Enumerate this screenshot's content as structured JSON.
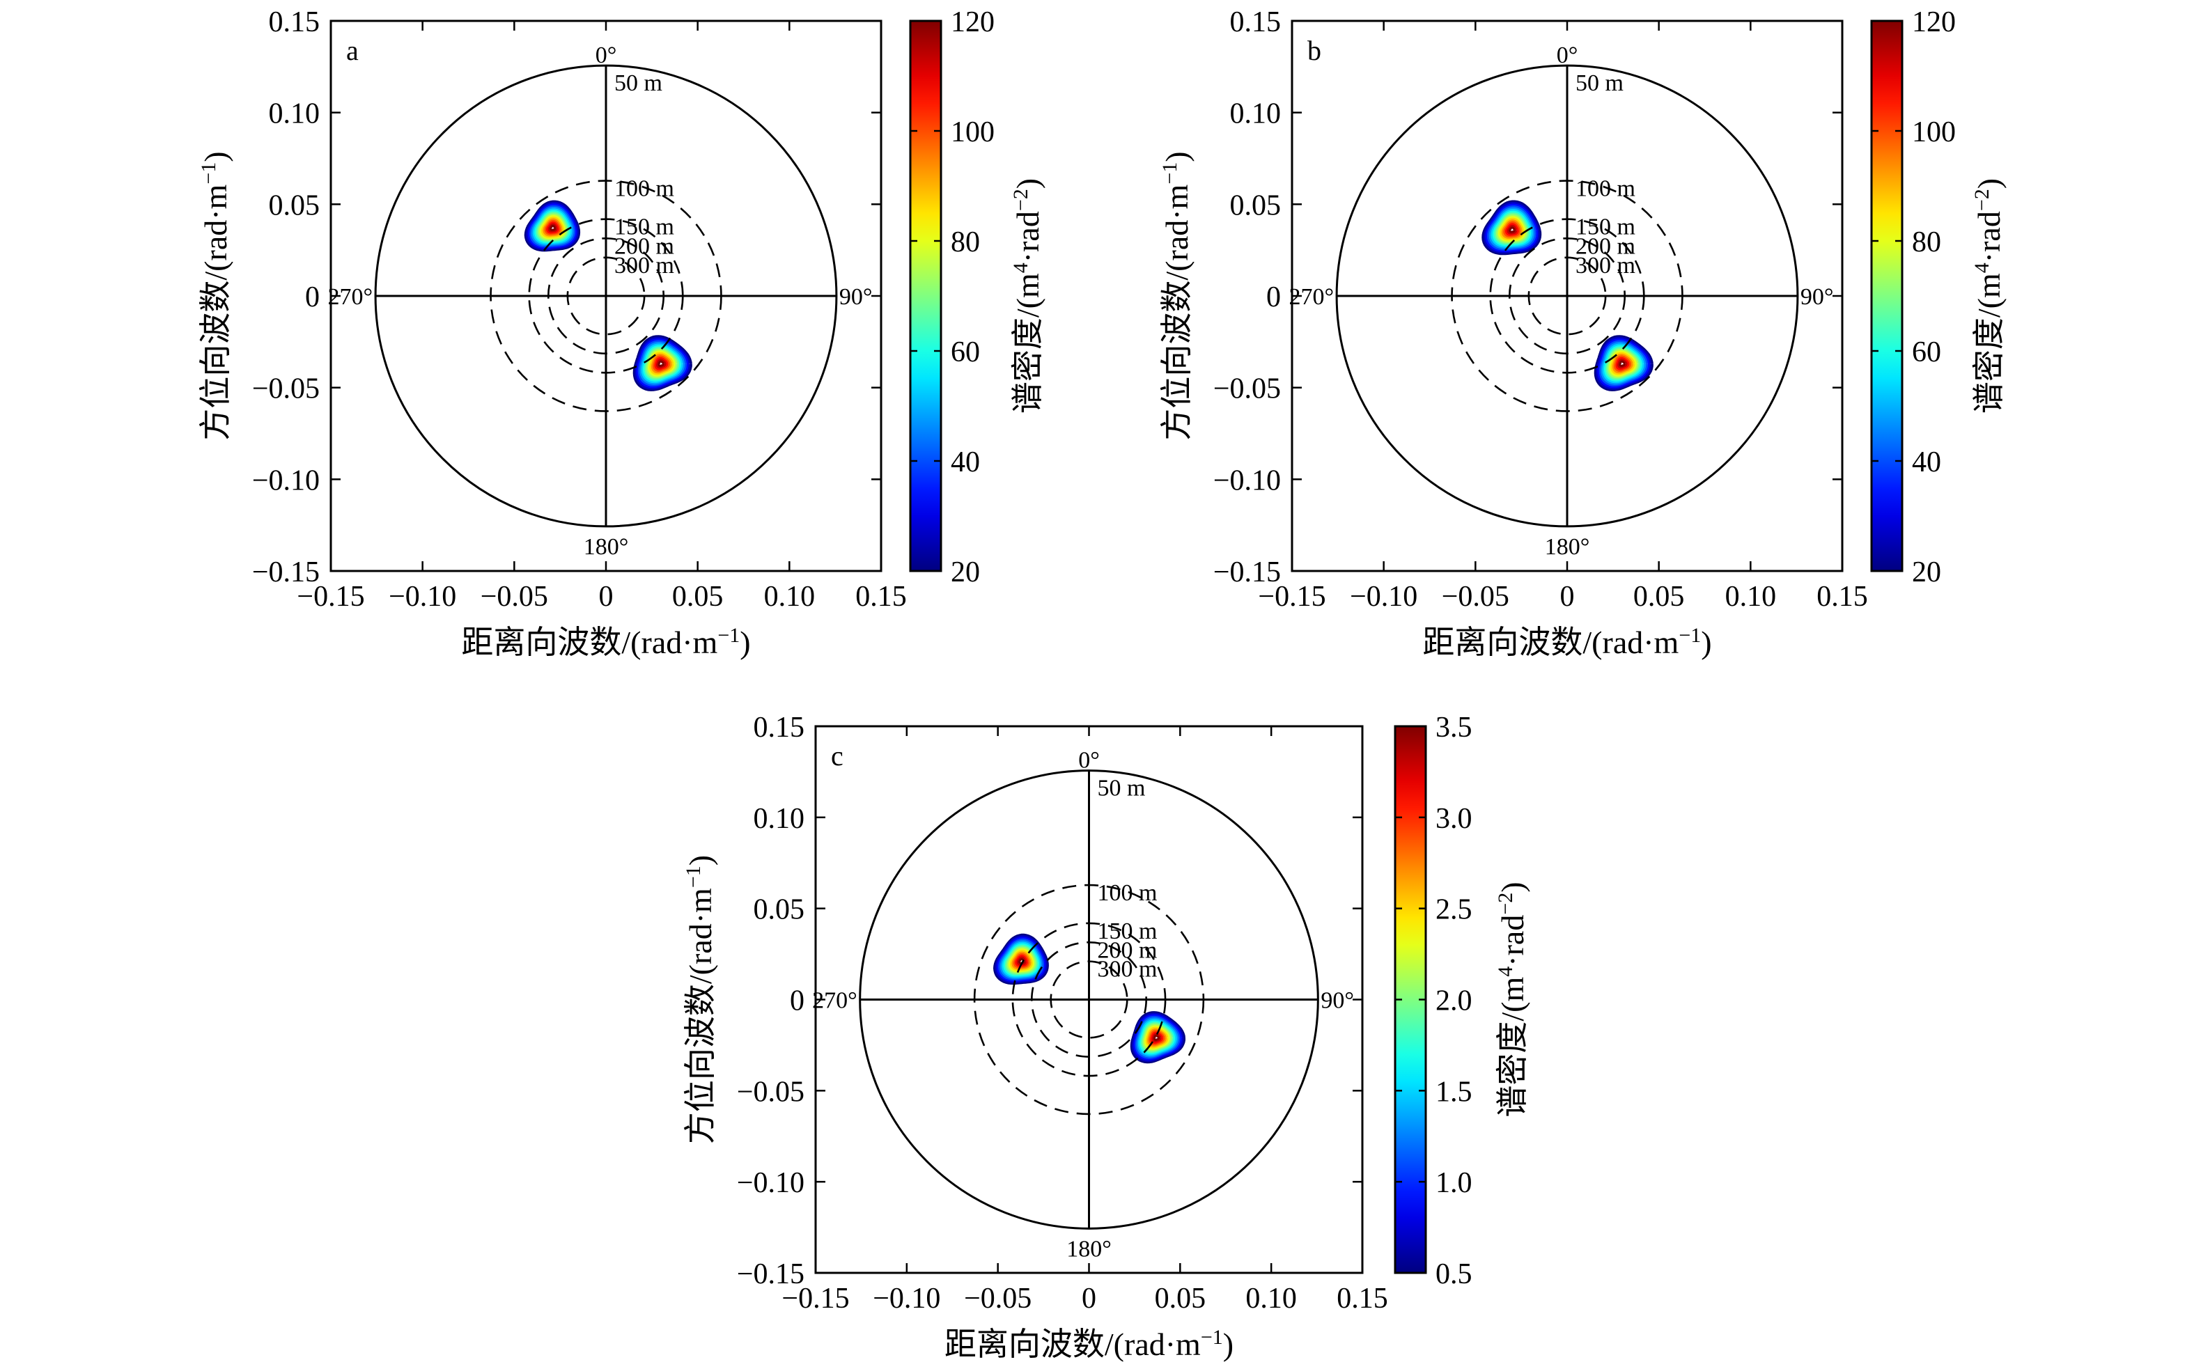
{
  "chart_data": [
    {
      "type": "contour",
      "panel_label": "a",
      "xlabel_main": "距离向波数/(rad·m",
      "xlabel_sup": "−1",
      "xlabel_end": ")",
      "ylabel_main": "方位向波数/(rad·m",
      "ylabel_sup": "−1",
      "ylabel_end": ")",
      "xlim": [
        -0.15,
        0.15
      ],
      "ylim": [
        -0.15,
        0.15
      ],
      "xticks": [
        -0.15,
        -0.1,
        -0.05,
        0,
        0.05,
        0.1,
        0.15
      ],
      "yticks": [
        -0.15,
        -0.1,
        -0.05,
        0,
        0.05,
        0.1,
        0.15
      ],
      "xtick_labels": [
        "−0.15",
        "−0.10",
        "−0.05",
        "0",
        "0.05",
        "0.10",
        "0.15"
      ],
      "ytick_labels": [
        "−0.15",
        "−0.10",
        "−0.05",
        "0",
        "0.05",
        "0.10",
        "0.15"
      ],
      "direction_labels": [
        "0°",
        "90°",
        "180°",
        "270°"
      ],
      "wavelength_rings": [
        {
          "label": "50 m",
          "wavelength": 50,
          "style": "solid"
        },
        {
          "label": "100 m",
          "wavelength": 100,
          "style": "dashed"
        },
        {
          "label": "150 m",
          "wavelength": 150,
          "style": "dashed"
        },
        {
          "label": "200 m",
          "wavelength": 200,
          "style": "dashed"
        },
        {
          "label": "300 m",
          "wavelength": 300,
          "style": "dashed"
        }
      ],
      "peaks": [
        {
          "kx": -0.029,
          "ky": 0.037,
          "radius": 0.014,
          "max": 120
        },
        {
          "kx": 0.03,
          "ky": -0.037,
          "radius": 0.015,
          "max": 120
        }
      ],
      "colorbar": {
        "label_main": "谱密度/(m",
        "label_sup1": "4",
        "label_mid": "·rad",
        "label_sup2": "−2",
        "label_end": ")",
        "min": 20,
        "max": 120,
        "ticks": [
          20,
          40,
          60,
          80,
          100,
          120
        ],
        "tick_labels": [
          "20",
          "40",
          "60",
          "80",
          "100",
          "120"
        ]
      }
    },
    {
      "type": "contour",
      "panel_label": "b",
      "xlabel_main": "距离向波数/(rad·m",
      "xlabel_sup": "−1",
      "xlabel_end": ")",
      "ylabel_main": "方位向波数/(rad·m",
      "ylabel_sup": "−1",
      "ylabel_end": ")",
      "xlim": [
        -0.15,
        0.15
      ],
      "ylim": [
        -0.15,
        0.15
      ],
      "xticks": [
        -0.15,
        -0.1,
        -0.05,
        0,
        0.05,
        0.1,
        0.15
      ],
      "yticks": [
        -0.15,
        -0.1,
        -0.05,
        0,
        0.05,
        0.1,
        0.15
      ],
      "xtick_labels": [
        "−0.15",
        "−0.10",
        "−0.05",
        "0",
        "0.05",
        "0.10",
        "0.15"
      ],
      "ytick_labels": [
        "−0.15",
        "−0.10",
        "−0.05",
        "0",
        "0.05",
        "0.10",
        "0.15"
      ],
      "direction_labels": [
        "0°",
        "90°",
        "180°",
        "270°"
      ],
      "wavelength_rings": [
        {
          "label": "50 m",
          "wavelength": 50,
          "style": "solid"
        },
        {
          "label": "100 m",
          "wavelength": 100,
          "style": "dashed"
        },
        {
          "label": "150 m",
          "wavelength": 150,
          "style": "dashed"
        },
        {
          "label": "200 m",
          "wavelength": 200,
          "style": "dashed"
        },
        {
          "label": "300 m",
          "wavelength": 300,
          "style": "dashed"
        }
      ],
      "peaks": [
        {
          "kx": -0.03,
          "ky": 0.036,
          "radius": 0.015,
          "max": 120
        },
        {
          "kx": 0.03,
          "ky": -0.037,
          "radius": 0.015,
          "max": 120
        }
      ],
      "colorbar": {
        "label_main": "谱密度/(m",
        "label_sup1": "4",
        "label_mid": "·rad",
        "label_sup2": "−2",
        "label_end": ")",
        "min": 20,
        "max": 120,
        "ticks": [
          20,
          40,
          60,
          80,
          100,
          120
        ],
        "tick_labels": [
          "20",
          "40",
          "60",
          "80",
          "100",
          "120"
        ]
      }
    },
    {
      "type": "contour",
      "panel_label": "c",
      "xlabel_main": "距离向波数/(rad·m",
      "xlabel_sup": "−1",
      "xlabel_end": ")",
      "ylabel_main": "方位向波数/(rad·m",
      "ylabel_sup": "−1",
      "ylabel_end": ")",
      "xlim": [
        -0.15,
        0.15
      ],
      "ylim": [
        -0.15,
        0.15
      ],
      "xticks": [
        -0.15,
        -0.1,
        -0.05,
        0,
        0.05,
        0.1,
        0.15
      ],
      "yticks": [
        -0.15,
        -0.1,
        -0.05,
        0,
        0.05,
        0.1,
        0.15
      ],
      "xtick_labels": [
        "−0.15",
        "−0.10",
        "−0.05",
        "0",
        "0.05",
        "0.10",
        "0.15"
      ],
      "ytick_labels": [
        "−0.15",
        "−0.10",
        "−0.05",
        "0",
        "0.05",
        "0.10",
        "0.15"
      ],
      "direction_labels": [
        "0°",
        "90°",
        "180°",
        "270°"
      ],
      "wavelength_rings": [
        {
          "label": "50 m",
          "wavelength": 50,
          "style": "solid"
        },
        {
          "label": "100 m",
          "wavelength": 100,
          "style": "dashed"
        },
        {
          "label": "150 m",
          "wavelength": 150,
          "style": "dashed"
        },
        {
          "label": "200 m",
          "wavelength": 200,
          "style": "dashed"
        },
        {
          "label": "300 m",
          "wavelength": 300,
          "style": "dashed"
        }
      ],
      "peaks": [
        {
          "kx": -0.037,
          "ky": 0.021,
          "radius": 0.014,
          "max": 3.5
        },
        {
          "kx": 0.037,
          "ky": -0.021,
          "radius": 0.014,
          "max": 3.5
        }
      ],
      "colorbar": {
        "label_main": "谱密度/(m",
        "label_sup1": "4",
        "label_mid": "·rad",
        "label_sup2": "−2",
        "label_end": ")",
        "min": 0.5,
        "max": 3.5,
        "ticks": [
          0.5,
          1.0,
          1.5,
          2.0,
          2.5,
          3.0,
          3.5
        ],
        "tick_labels": [
          "0.5",
          "1.0",
          "1.5",
          "2.0",
          "2.5",
          "3.0",
          "3.5"
        ]
      }
    }
  ]
}
